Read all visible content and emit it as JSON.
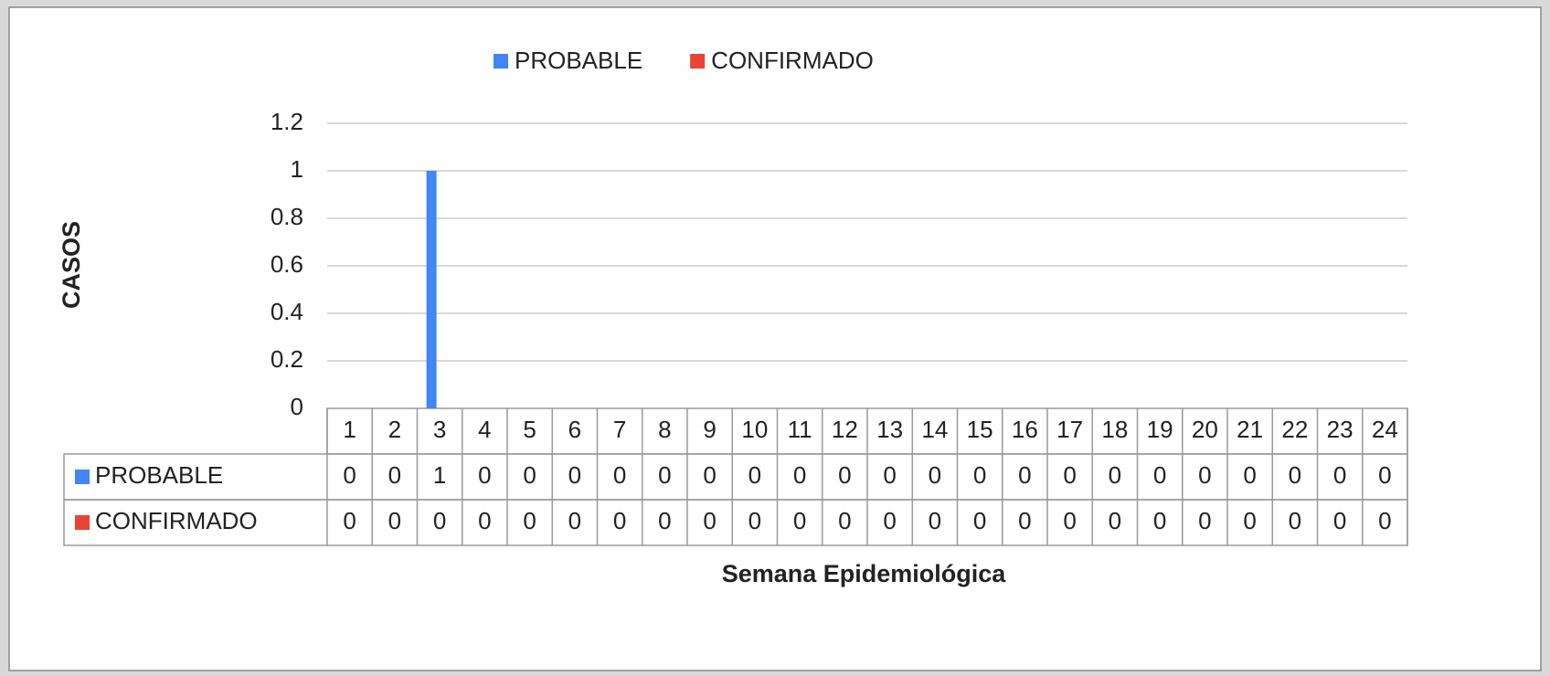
{
  "chart_data": {
    "type": "bar",
    "y_label": "CASOS",
    "x_label": "Semana Epidemiológica",
    "categories": [
      "1",
      "2",
      "3",
      "4",
      "5",
      "6",
      "7",
      "8",
      "9",
      "10",
      "11",
      "12",
      "13",
      "14",
      "15",
      "16",
      "17",
      "18",
      "19",
      "20",
      "21",
      "22",
      "23",
      "24"
    ],
    "series": [
      {
        "name": "PROBABLE",
        "color": "#4285f4",
        "values": [
          0,
          0,
          1,
          0,
          0,
          0,
          0,
          0,
          0,
          0,
          0,
          0,
          0,
          0,
          0,
          0,
          0,
          0,
          0,
          0,
          0,
          0,
          0,
          0
        ]
      },
      {
        "name": "CONFIRMADO",
        "color": "#ea4335",
        "values": [
          0,
          0,
          0,
          0,
          0,
          0,
          0,
          0,
          0,
          0,
          0,
          0,
          0,
          0,
          0,
          0,
          0,
          0,
          0,
          0,
          0,
          0,
          0,
          0
        ]
      }
    ],
    "ylim": [
      0,
      1.2
    ],
    "yticks": [
      0,
      0.2,
      0.4,
      0.6,
      0.8,
      1,
      1.2
    ],
    "grid": true,
    "legend": "top",
    "data_table": true
  }
}
